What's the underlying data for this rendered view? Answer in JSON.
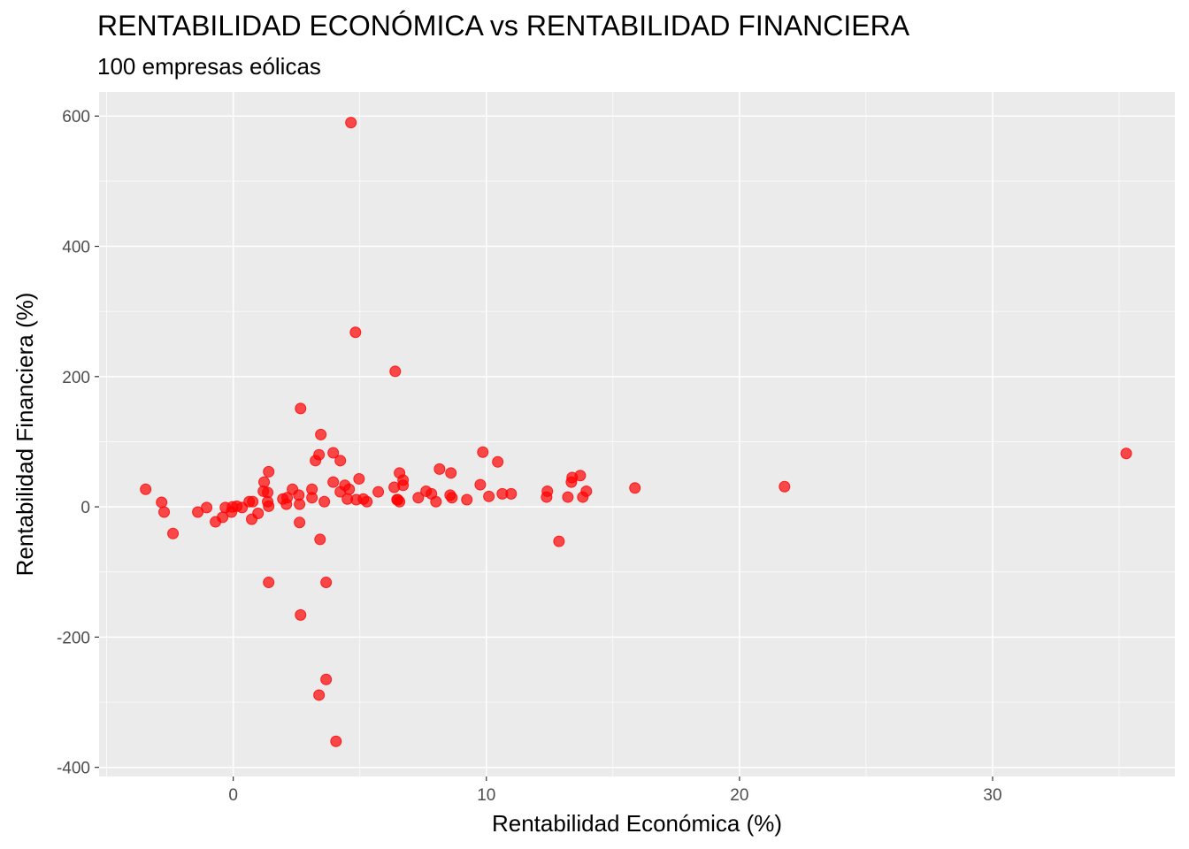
{
  "chart_data": {
    "type": "scatter",
    "title": "RENTABILIDAD ECONÓMICA vs RENTABILIDAD FINANCIERA",
    "subtitle": "100 empresas eólicas",
    "xlabel": "Rentabilidad Económica (%)",
    "ylabel": "Rentabilidad Financiera (%)",
    "xlim": [
      -5.3,
      37.2
    ],
    "ylim": [
      -414,
      637
    ],
    "xticks": [
      0,
      10,
      20,
      30
    ],
    "xtick_labels": [
      "0",
      "10",
      "20",
      "30"
    ],
    "yticks": [
      -400,
      -200,
      0,
      200,
      400,
      600
    ],
    "ytick_labels": [
      "-400",
      "-200",
      "0",
      "200",
      "400",
      "600"
    ],
    "grid": true,
    "point_color": "#FF0000",
    "panel_color": "#EBEBEB",
    "points": [
      [
        -3.46,
        27
      ],
      [
        -2.83,
        7
      ],
      [
        -2.73,
        -8
      ],
      [
        -2.38,
        -41
      ],
      [
        -1.4,
        -8
      ],
      [
        -1.05,
        -1
      ],
      [
        -0.7,
        -23
      ],
      [
        -0.42,
        -16
      ],
      [
        -0.31,
        -1
      ],
      [
        -0.07,
        -8
      ],
      [
        -0.03,
        0
      ],
      [
        0.14,
        1
      ],
      [
        0.35,
        -1
      ],
      [
        0.63,
        8
      ],
      [
        0.77,
        8
      ],
      [
        0.73,
        -19
      ],
      [
        0.98,
        -10
      ],
      [
        1.22,
        38
      ],
      [
        1.4,
        54
      ],
      [
        1.19,
        24
      ],
      [
        1.36,
        22
      ],
      [
        1.36,
        8
      ],
      [
        1.4,
        1
      ],
      [
        1.96,
        12
      ],
      [
        2.1,
        4
      ],
      [
        2.13,
        14
      ],
      [
        2.34,
        27
      ],
      [
        2.59,
        18
      ],
      [
        2.62,
        4
      ],
      [
        2.62,
        -24
      ],
      [
        3.11,
        27
      ],
      [
        3.11,
        14
      ],
      [
        3.25,
        71
      ],
      [
        3.39,
        80
      ],
      [
        3.46,
        111
      ],
      [
        3.43,
        -50
      ],
      [
        3.6,
        8
      ],
      [
        3.95,
        83
      ],
      [
        3.95,
        38
      ],
      [
        4.23,
        71
      ],
      [
        4.23,
        23
      ],
      [
        4.41,
        33
      ],
      [
        4.51,
        12
      ],
      [
        4.58,
        27
      ],
      [
        4.86,
        11
      ],
      [
        4.97,
        43
      ],
      [
        5.14,
        12
      ],
      [
        5.28,
        8
      ],
      [
        5.73,
        23
      ],
      [
        6.36,
        30
      ],
      [
        6.57,
        52
      ],
      [
        6.5,
        11
      ],
      [
        6.71,
        33
      ],
      [
        9.86,
        84
      ],
      [
        10.45,
        69
      ],
      [
        9.76,
        34
      ],
      [
        10.1,
        16
      ],
      [
        10.63,
        20
      ],
      [
        10.98,
        20
      ],
      [
        8.15,
        58
      ],
      [
        8.6,
        52
      ],
      [
        7.62,
        24
      ],
      [
        7.83,
        20
      ],
      [
        7.31,
        14
      ],
      [
        8.01,
        8
      ],
      [
        8.57,
        18
      ],
      [
        8.64,
        14
      ],
      [
        9.23,
        11
      ],
      [
        6.71,
        41
      ],
      [
        6.47,
        11
      ],
      [
        6.57,
        8
      ],
      [
        12.41,
        24
      ],
      [
        12.38,
        15
      ],
      [
        13.22,
        15
      ],
      [
        12.87,
        -53
      ],
      [
        13.39,
        45
      ],
      [
        13.36,
        38
      ],
      [
        13.71,
        48
      ],
      [
        13.95,
        24
      ],
      [
        13.81,
        15
      ],
      [
        15.87,
        29
      ],
      [
        21.78,
        31
      ],
      [
        35.28,
        82
      ],
      [
        4.65,
        590
      ],
      [
        4.83,
        268
      ],
      [
        6.4,
        208
      ],
      [
        2.66,
        151
      ],
      [
        1.4,
        -116
      ],
      [
        3.67,
        -116
      ],
      [
        2.66,
        -166
      ],
      [
        3.67,
        -265
      ],
      [
        3.39,
        -289
      ],
      [
        4.06,
        -360
      ]
    ]
  }
}
